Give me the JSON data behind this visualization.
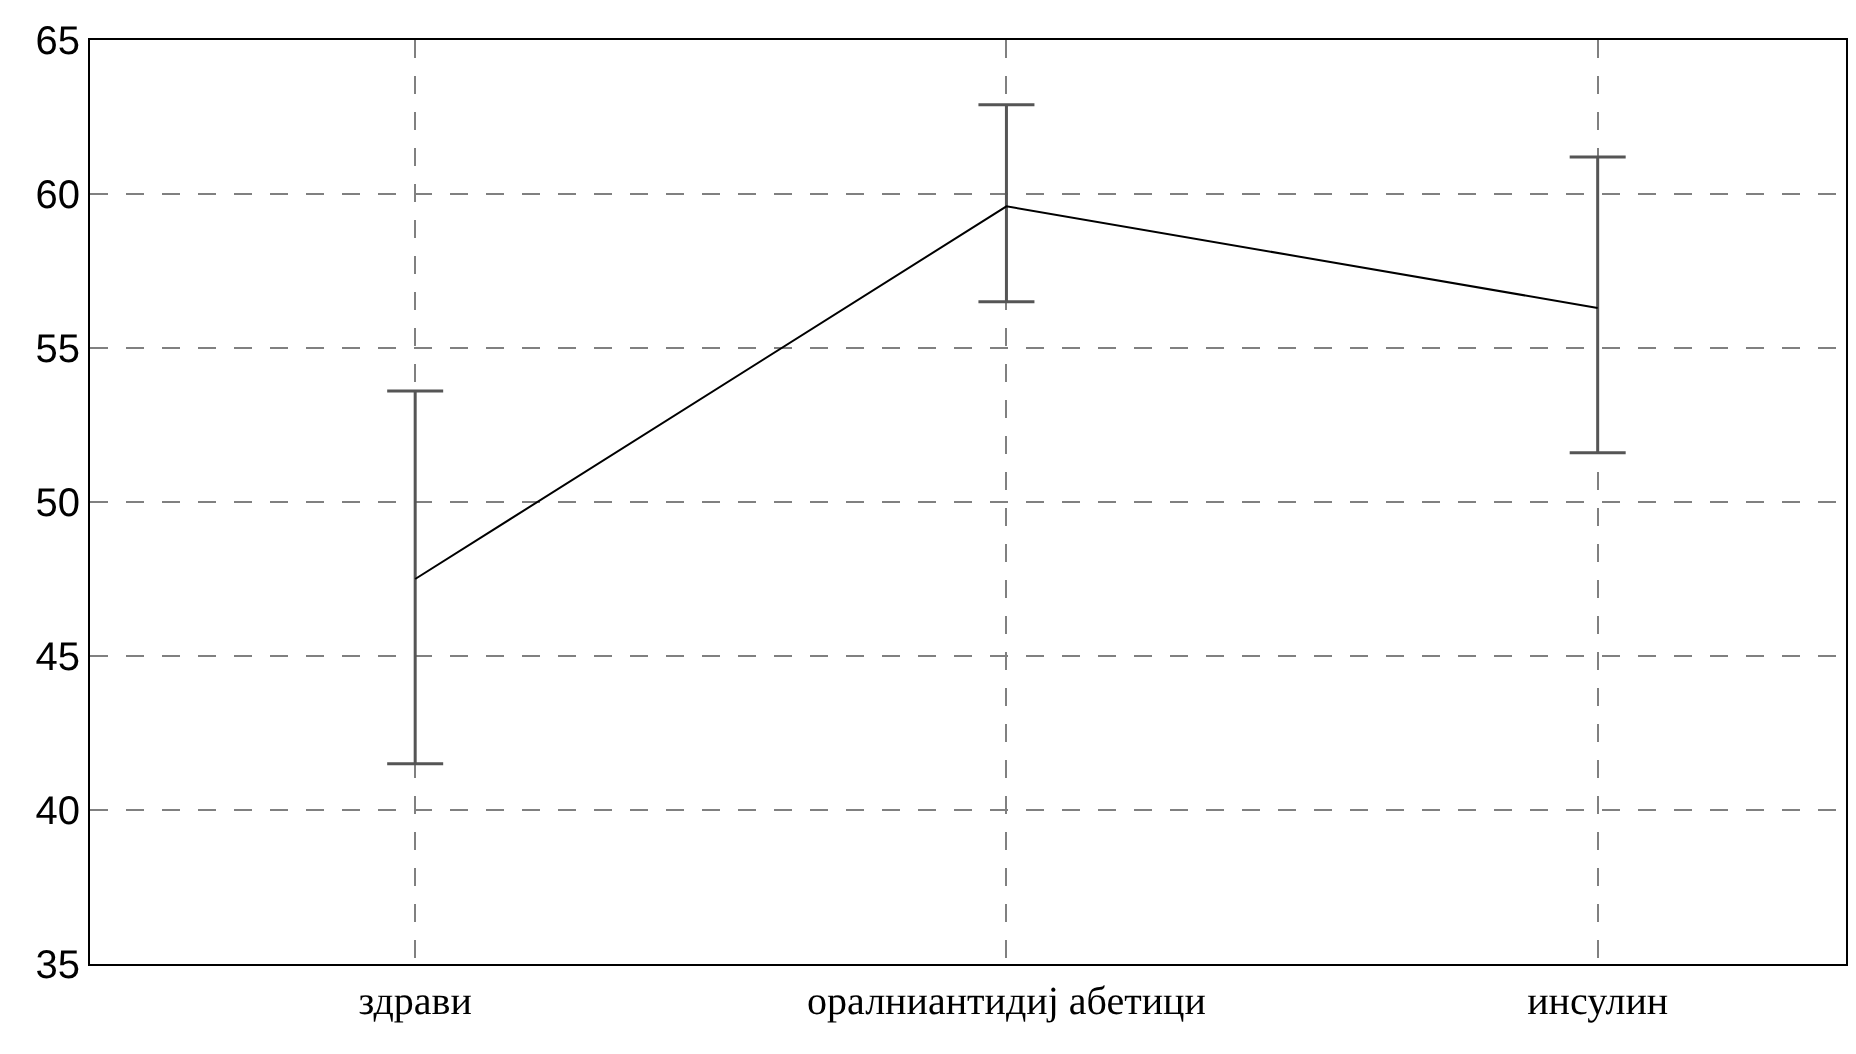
{
  "chart_data": {
    "type": "line",
    "categories": [
      "здрави",
      "оралниантидиј абетици",
      "инсулин"
    ],
    "values": [
      47.5,
      59.6,
      56.3
    ],
    "errors": [
      [
        41.5,
        53.6
      ],
      [
        56.5,
        62.9
      ],
      [
        51.6,
        61.2
      ]
    ],
    "color": "#000000",
    "ylim": [
      35,
      65
    ],
    "yticks": [
      35,
      40,
      45,
      50,
      55,
      60,
      65
    ],
    "grid": true,
    "line_style": "solid",
    "marker": "none"
  }
}
